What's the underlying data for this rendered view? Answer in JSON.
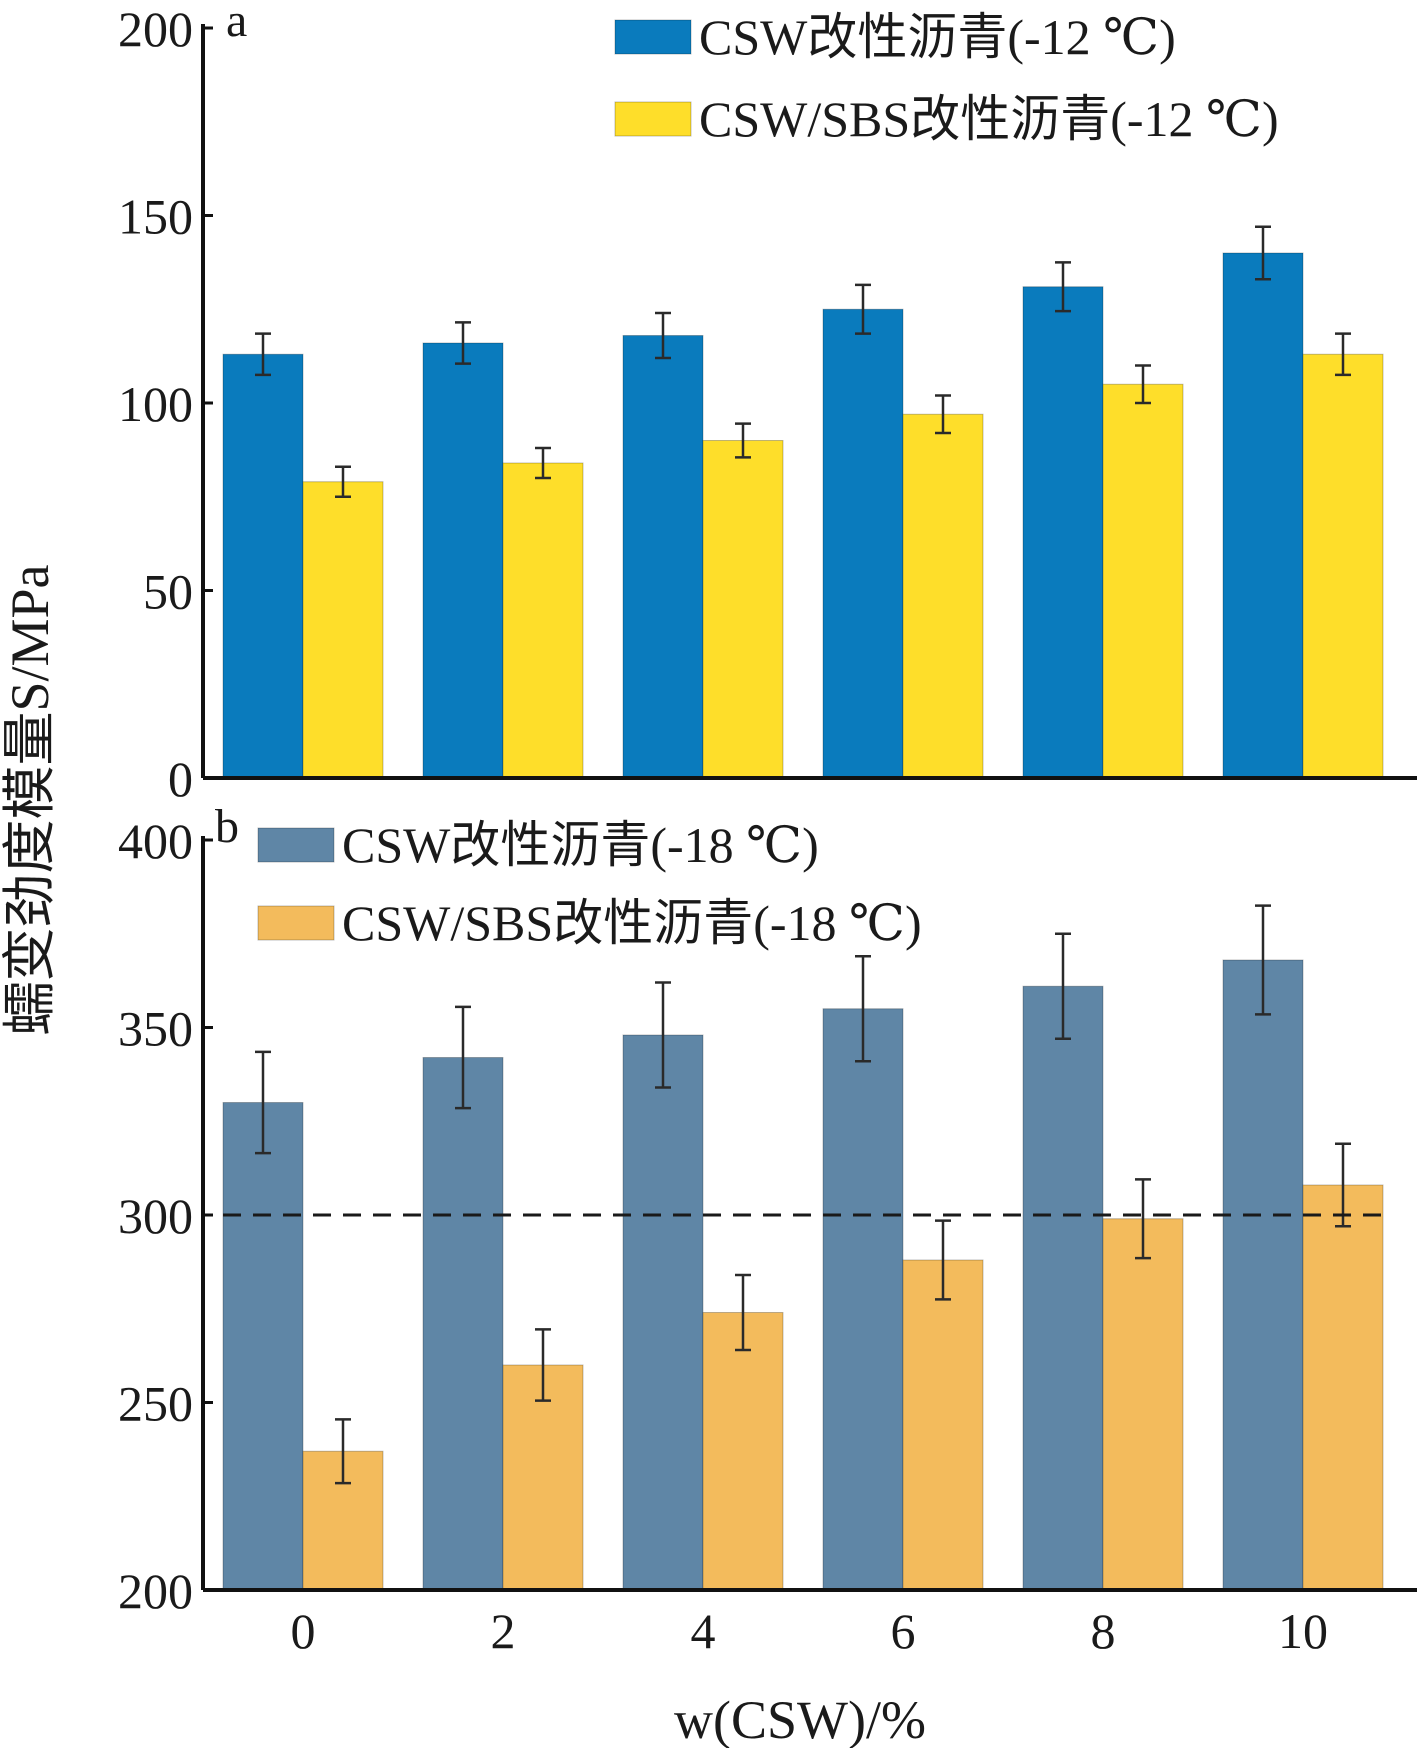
{
  "chart_data": {
    "type": "bar",
    "xlabel": "w(CSW)/%",
    "ylabel": "蠕变劲度模量S/MPa",
    "categories": [
      "0",
      "2",
      "4",
      "6",
      "8",
      "10"
    ],
    "panels": [
      {
        "letter": "a",
        "ylim": [
          0,
          200
        ],
        "yticks": [
          "0",
          "50",
          "100",
          "150",
          "200"
        ],
        "series": [
          {
            "name": "CSW改性沥青(-12 ℃)",
            "color": "#0a7bbd",
            "values": [
              113,
              116,
              118,
              125,
              131,
              140
            ],
            "errors": [
              5.5,
              5.5,
              6,
              6.5,
              6.5,
              7
            ]
          },
          {
            "name": "CSW/SBS改性沥青(-12 ℃)",
            "color": "#fede2a",
            "values": [
              79,
              84,
              90,
              97,
              105,
              113
            ],
            "errors": [
              4,
              4,
              4.5,
              5,
              5,
              5.5
            ]
          }
        ]
      },
      {
        "letter": "b",
        "ylim": [
          200,
          400
        ],
        "yticks": [
          "200",
          "250",
          "300",
          "350",
          "400"
        ],
        "reference_line": 300,
        "series": [
          {
            "name": "CSW改性沥青(-18 ℃)",
            "color": "#5f86a6",
            "values": [
              330,
              342,
              348,
              355,
              361,
              368
            ],
            "errors": [
              13.5,
              13.5,
              14,
              14,
              14,
              14.5
            ]
          },
          {
            "name": "CSW/SBS改性沥青(-18 ℃)",
            "color": "#f3bb5c",
            "values": [
              237,
              260,
              274,
              288,
              299,
              308
            ],
            "errors": [
              8.5,
              9.5,
              10,
              10.5,
              10.5,
              11
            ]
          }
        ]
      }
    ]
  }
}
